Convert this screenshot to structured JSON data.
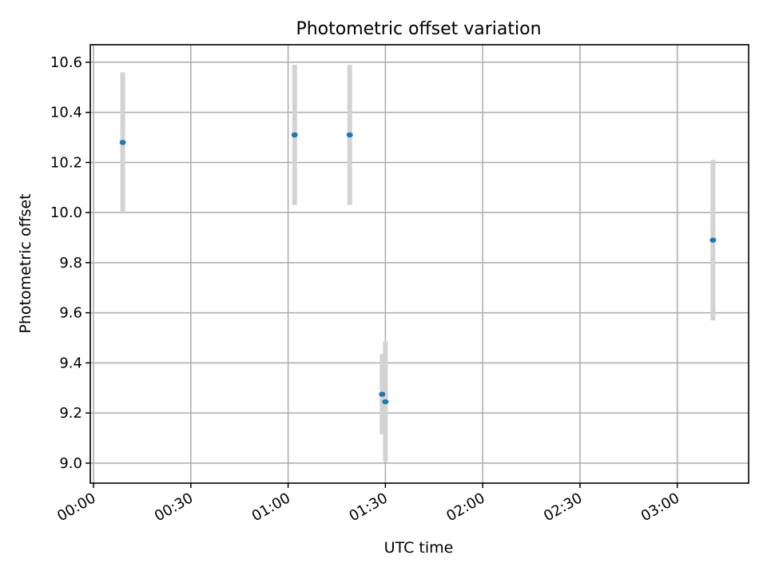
{
  "chart_data": {
    "type": "scatter",
    "title": "Photometric offset variation",
    "xlabel": "UTC time",
    "ylabel": "Photometric offset",
    "grid": true,
    "x_unit": "time (HH:MM)",
    "xlim": [
      "23:59",
      "03:22"
    ],
    "ylim": [
      8.92,
      10.67
    ],
    "x_ticks": [
      "00:00",
      "00:30",
      "01:00",
      "01:30",
      "02:00",
      "02:30",
      "03:00"
    ],
    "y_ticks": [
      "9.0",
      "9.2",
      "9.4",
      "9.6",
      "9.8",
      "10.0",
      "10.2",
      "10.4",
      "10.6"
    ],
    "series": [
      {
        "marker_color": "#1f77b4",
        "errorbar_color": "#d3d3d3",
        "points": [
          {
            "x": "00:09",
            "y": 10.28,
            "error": 0.28
          },
          {
            "x": "01:02",
            "y": 10.31,
            "error": 0.28
          },
          {
            "x": "01:19",
            "y": 10.31,
            "error": 0.28
          },
          {
            "x": "01:29",
            "y": 9.275,
            "error": 0.16
          },
          {
            "x": "01:30",
            "y": 9.245,
            "error": 0.24
          },
          {
            "x": "03:11",
            "y": 9.89,
            "error": 0.32
          }
        ]
      }
    ]
  }
}
